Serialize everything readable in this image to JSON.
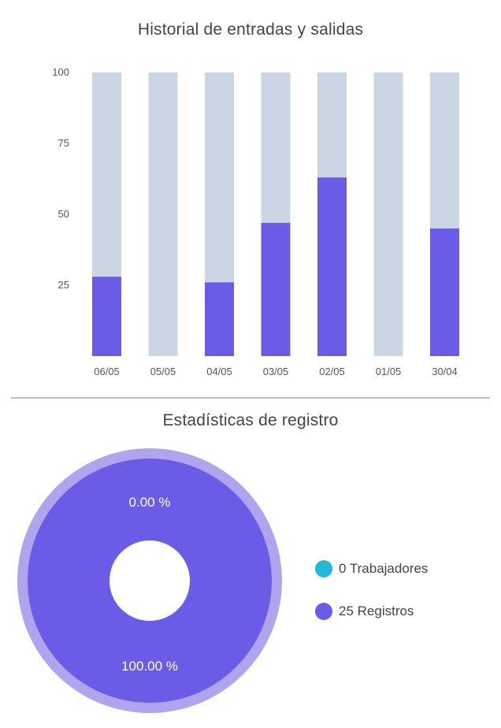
{
  "chart_data": [
    {
      "type": "bar",
      "title": "Historial de entradas y salidas",
      "categories": [
        "06/05",
        "05/05",
        "04/05",
        "03/05",
        "02/05",
        "01/05",
        "30/04"
      ],
      "values": [
        28,
        0,
        26,
        47,
        63,
        0,
        45
      ],
      "ylim": [
        0,
        100
      ],
      "yticks": [
        25,
        50,
        75,
        100
      ],
      "grid": false,
      "colors": {
        "value": "#6b5ce7",
        "background": "#cbd6e4"
      }
    },
    {
      "type": "pie",
      "title": "Estadísticas de registro",
      "slices": [
        {
          "label": "Trabajadores",
          "count": 0,
          "percent": 0.0,
          "percent_label": "0.00 %",
          "legend_label": "0 Trabajadores",
          "color": "#22b8d8"
        },
        {
          "label": "Registros",
          "count": 25,
          "percent": 100.0,
          "percent_label": "100.00 %",
          "legend_label": "25 Registros",
          "color": "#6b5ce7"
        }
      ],
      "donut": true,
      "legend": "right",
      "colors": {
        "outer_ring": "#aea5ee"
      }
    }
  ]
}
